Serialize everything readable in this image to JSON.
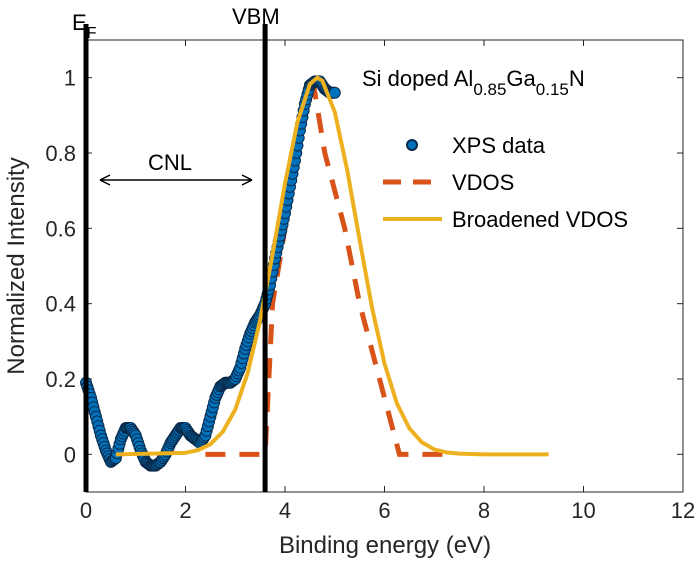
{
  "chart_data": {
    "type": "line",
    "xlabel": "Binding energy (eV)",
    "ylabel": "Normalized Intensity",
    "xlim": [
      0,
      12
    ],
    "ylim": [
      -0.1,
      1.1
    ],
    "xticks": [
      "0",
      "2",
      "4",
      "6",
      "8",
      "10",
      "12"
    ],
    "yticks": [
      "0",
      "0.2",
      "0.4",
      "0.6",
      "0.8",
      "1"
    ],
    "grid": false,
    "legend_position": "top-right",
    "annotation_title": {
      "main": "Si doped Al",
      "sub1": "0.85",
      "mid": "Ga",
      "sub2": "0.15",
      "end": "N"
    },
    "vertical_lines": [
      {
        "x": 0,
        "label_main": "E",
        "label_sub": "F"
      },
      {
        "x": 3.6,
        "label_main": "VBM",
        "label_sub": ""
      }
    ],
    "arrow_annotation": {
      "label": "CNL",
      "x_from": 0,
      "x_to": 3.6,
      "y": 0.73
    },
    "series": [
      {
        "name": "XPS data",
        "style": "markers",
        "color": "#0072BD",
        "x": [
          0,
          0.1,
          0.2,
          0.3,
          0.4,
          0.5,
          0.6,
          0.7,
          0.8,
          0.9,
          1.0,
          1.1,
          1.2,
          1.3,
          1.4,
          1.5,
          1.6,
          1.7,
          1.8,
          1.9,
          2.0,
          2.1,
          2.2,
          2.3,
          2.4,
          2.5,
          2.6,
          2.7,
          2.8,
          2.9,
          3.0,
          3.1,
          3.2,
          3.3,
          3.4,
          3.5,
          3.6,
          3.7,
          3.8,
          3.9,
          4.0,
          4.1,
          4.2,
          4.3,
          4.4,
          4.5,
          4.6,
          4.7,
          4.8,
          4.9,
          5.0
        ],
        "y": [
          0.19,
          0.15,
          0.1,
          0.05,
          0.01,
          -0.02,
          -0.01,
          0.04,
          0.07,
          0.07,
          0.05,
          0.01,
          -0.02,
          -0.03,
          -0.03,
          -0.02,
          0.0,
          0.03,
          0.05,
          0.07,
          0.07,
          0.05,
          0.04,
          0.03,
          0.05,
          0.1,
          0.15,
          0.18,
          0.19,
          0.19,
          0.2,
          0.23,
          0.28,
          0.32,
          0.35,
          0.37,
          0.4,
          0.45,
          0.52,
          0.58,
          0.64,
          0.71,
          0.78,
          0.86,
          0.93,
          0.98,
          0.99,
          0.99,
          0.97,
          0.96,
          0.96
        ]
      },
      {
        "name": "VDOS",
        "style": "dashed",
        "color": "#D95319",
        "x": [
          2.4,
          3.6,
          3.75,
          4.0,
          4.3,
          4.55,
          4.8,
          5.2,
          5.5,
          5.9,
          6.3,
          7.2
        ],
        "y": [
          0,
          0,
          0.4,
          0.6,
          0.85,
          1.0,
          0.8,
          0.6,
          0.4,
          0.2,
          0,
          0
        ]
      },
      {
        "name": "Broadened VDOS",
        "style": "solid",
        "color": "#EDB120",
        "x": [
          0.6,
          2.0,
          2.25,
          2.5,
          2.75,
          3.0,
          3.25,
          3.5,
          3.75,
          4.0,
          4.25,
          4.5,
          4.65,
          4.75,
          5.0,
          5.25,
          5.5,
          5.75,
          6.0,
          6.25,
          6.5,
          6.75,
          7.0,
          7.25,
          7.5,
          8.0,
          9.3
        ],
        "y": [
          0,
          0.004,
          0.011,
          0.027,
          0.06,
          0.119,
          0.216,
          0.356,
          0.531,
          0.719,
          0.882,
          0.983,
          1.0,
          0.992,
          0.909,
          0.755,
          0.569,
          0.389,
          0.241,
          0.135,
          0.069,
          0.032,
          0.013,
          0.005,
          0.002,
          0,
          0
        ]
      }
    ]
  }
}
